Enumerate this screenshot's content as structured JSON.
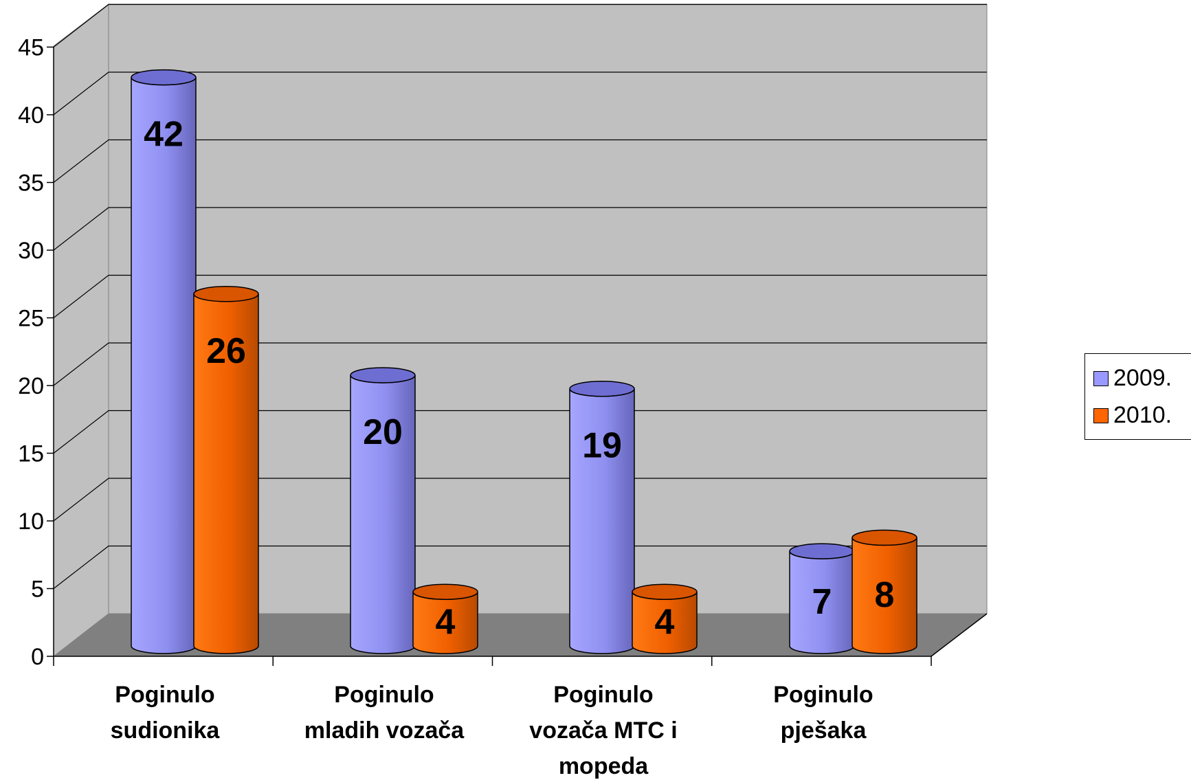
{
  "chart_data": {
    "type": "bar",
    "style": "3d-cylinder",
    "categories": [
      [
        "Poginulo",
        "sudionika"
      ],
      [
        "Poginulo",
        "mladih vozača"
      ],
      [
        "Poginulo",
        "vozača MTC i",
        "mopeda"
      ],
      [
        "Poginulo",
        "pješaka"
      ]
    ],
    "series": [
      {
        "name": "2009.",
        "values": [
          42,
          20,
          19,
          7
        ],
        "color": "#9999ff"
      },
      {
        "name": "2010.",
        "values": [
          26,
          4,
          4,
          8
        ],
        "color": "#ff6600"
      }
    ],
    "ylim": [
      0,
      45
    ],
    "yticks": [
      0,
      5,
      10,
      15,
      20,
      25,
      30,
      35,
      40,
      45
    ],
    "grid": true,
    "legend_position": "right",
    "data_labels": true,
    "wall_color": "#c0c0c0",
    "floor_color": "#808080"
  }
}
